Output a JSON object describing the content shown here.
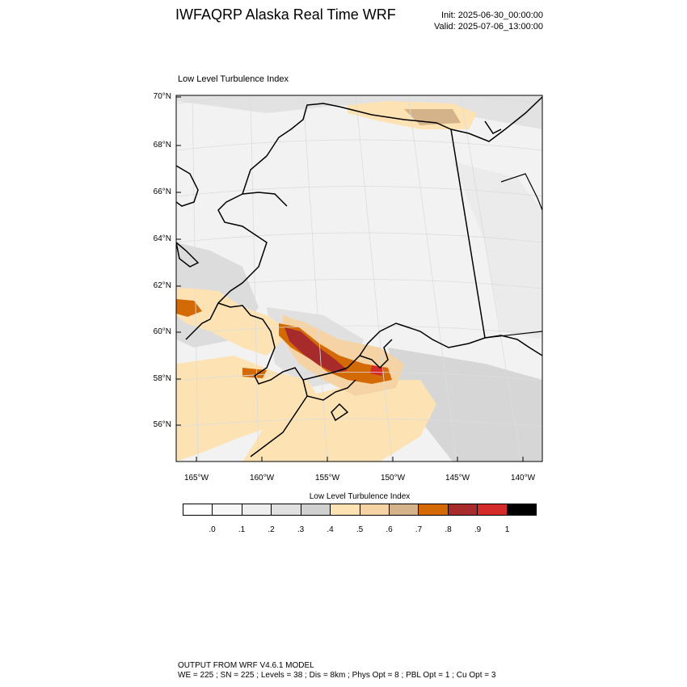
{
  "header": {
    "title": "IWFAQRP Alaska Real Time WRF",
    "init": "Init: 2025-06-30_00:00:00",
    "valid": "Valid: 2025-07-06_13:00:00"
  },
  "map": {
    "field_title": "Low Level Turbulence Index",
    "lat_labels": [
      "70°N",
      "68°N",
      "66°N",
      "64°N",
      "62°N",
      "60°N",
      "58°N",
      "56°N"
    ],
    "lon_labels": [
      "165°W",
      "160°W",
      "155°W",
      "150°W",
      "145°W",
      "140°W"
    ],
    "background_color": "#f2f2f2"
  },
  "colorbar": {
    "title": "Low Level Turbulence Index",
    "colors": [
      "#ffffff",
      "#f7f7f7",
      "#eeeeee",
      "#e0e0e0",
      "#d0d0d0",
      "#fde3b4",
      "#f5d3a4",
      "#d5b38a",
      "#d36a05",
      "#a82b2b",
      "#d42a2a",
      "#000000"
    ],
    "ticks": [
      ".0",
      ".1",
      ".2",
      ".3",
      ".4",
      ".5",
      ".6",
      ".7",
      ".8",
      ".9",
      "1"
    ]
  },
  "footer": {
    "line1": "OUTPUT FROM WRF V4.6.1 MODEL",
    "line2": "WE = 225 ; SN = 225 ; Levels = 38 ; Dis = 8km ; Phys Opt = 8 ; PBL Opt = 1 ; Cu Opt = 3"
  }
}
